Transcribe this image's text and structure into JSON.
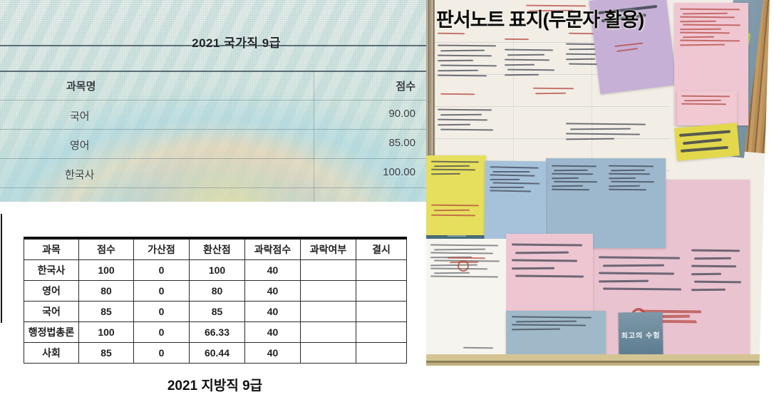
{
  "left_panel": {
    "national_exam": {
      "title": "2021 국가직 9급",
      "col_subject": "과목명",
      "col_score": "점수",
      "rows": [
        {
          "subject": "국어",
          "score": "90.00"
        },
        {
          "subject": "영어",
          "score": "85.00"
        },
        {
          "subject": "한국사",
          "score": "100.00"
        }
      ]
    },
    "local_exam": {
      "caption": "2021 지방직 9급",
      "headers": [
        "과목",
        "점수",
        "가산점",
        "환산점",
        "과락점수",
        "과락여부",
        "결시"
      ],
      "rows": [
        [
          "한국사",
          "100",
          "0",
          "100",
          "40",
          "",
          ""
        ],
        [
          "영어",
          "80",
          "0",
          "80",
          "40",
          "",
          ""
        ],
        [
          "국어",
          "85",
          "0",
          "85",
          "40",
          "",
          ""
        ],
        [
          "행정법총론",
          "100",
          "0",
          "66.33",
          "40",
          "",
          ""
        ],
        [
          "사회",
          "85",
          "0",
          "60.44",
          "40",
          "",
          ""
        ]
      ]
    }
  },
  "right_panel": {
    "photo_title": "판서노트 표지(두문자 활용)",
    "book_spine_text": "최고의 수험"
  },
  "colors": {
    "sticky_yellow": "#e6df5e",
    "sticky_blue": "#a6c2da",
    "sticky_pink": "#eec6d2",
    "sticky_purple": "#c6b0d6",
    "folder_blue": "#7f98ab",
    "desk_wood": "#b08a54",
    "ink_dark": "#3d4350",
    "ink_red": "#b4473e"
  }
}
